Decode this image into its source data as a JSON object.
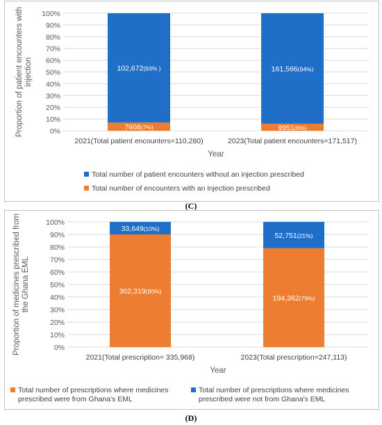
{
  "chart_data": [
    {
      "type": "bar",
      "stacked": true,
      "panel_label": "(C)",
      "categories": [
        "2021(Total patient encounters=110,280)",
        "2023(Total patient encounters=171,517)"
      ],
      "xlabel": "Year",
      "ylabel": "Proportion of patient encounters with injection",
      "ylabel_lines": [
        "Proportion of patient encounters with",
        "injection"
      ],
      "yticks": [
        "0%",
        "10%",
        "20%",
        "30%",
        "40%",
        "50%",
        "60%",
        "70%",
        "80%",
        "90%",
        "100%"
      ],
      "ylim": [
        0,
        100
      ],
      "legend_position": "bottom",
      "series": [
        {
          "name": "Total number of encounters with an injection prescribed",
          "color": "#ED7D31",
          "values": [
            7,
            6
          ],
          "labels": [
            {
              "count": "7608",
              "pct": "(7%)"
            },
            {
              "count": "9951",
              "pct": "(6%)"
            }
          ]
        },
        {
          "name": "Total number of patient encounters without an injection prescribed",
          "color": "#1F6FC9",
          "values": [
            93,
            94
          ],
          "labels": [
            {
              "count": "102,672",
              "pct": "(93% )"
            },
            {
              "count": "161,566",
              "pct": "(94%)"
            }
          ]
        }
      ],
      "legend": [
        {
          "name": "Total number of patient encounters without an injection prescribed",
          "color": "#1F6FC9"
        },
        {
          "name": "Total number of encounters with an injection prescribed",
          "color": "#ED7D31"
        }
      ]
    },
    {
      "type": "bar",
      "stacked": true,
      "panel_label": "(D)",
      "categories": [
        "2021(Total prescription= 335,968)",
        "2023(Total prescription=247,113)"
      ],
      "xlabel": "Year",
      "ylabel": "Proportion of medicines prescribed from the Ghana EML",
      "ylabel_lines": [
        "Proportion of medicines prescribed from",
        "the Ghana EML"
      ],
      "yticks": [
        "0%",
        "10%",
        "20%",
        "30%",
        "40%",
        "50%",
        "60%",
        "70%",
        "80%",
        "90%",
        "100%"
      ],
      "ylim": [
        0,
        100
      ],
      "legend_position": "bottom",
      "series": [
        {
          "name": "Total number of prescriptions where medicines prescribed were from Ghana's EML",
          "color": "#ED7D31",
          "values": [
            90,
            79
          ],
          "labels": [
            {
              "count": "302,319",
              "pct": "(90%)"
            },
            {
              "count": "194,362",
              "pct": "(79%)"
            }
          ]
        },
        {
          "name": "Total number of prescriptions where medicines prescribed were not from Ghana's EML",
          "color": "#1F6FC9",
          "values": [
            10,
            21
          ],
          "labels": [
            {
              "count": "33,649",
              "pct": "(10%)"
            },
            {
              "count": "52,751",
              "pct": "(21%)"
            }
          ]
        }
      ],
      "legend": [
        {
          "name_lines": [
            "Total number of prescriptions where medicines",
            "prescribed were from Ghana's EML"
          ],
          "color": "#ED7D31"
        },
        {
          "name_lines": [
            "Total number of prescriptions where medicines",
            "prescribed were not from Ghana's EML"
          ],
          "color": "#1F6FC9"
        }
      ]
    }
  ]
}
